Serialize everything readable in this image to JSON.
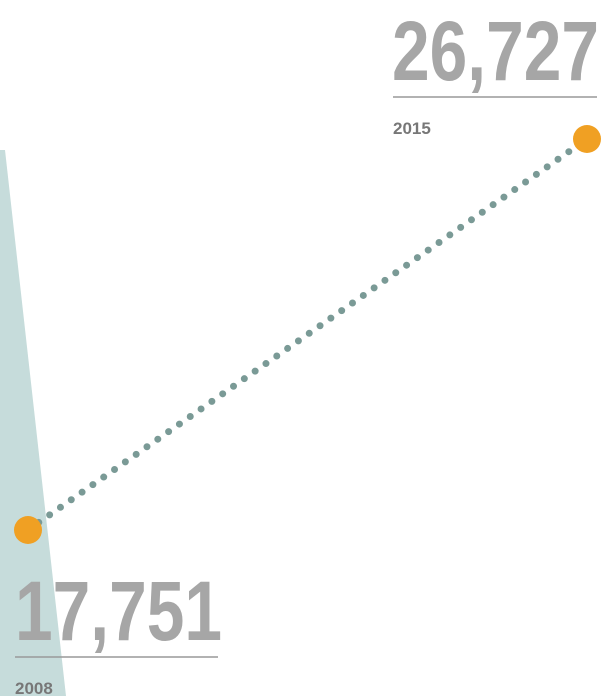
{
  "chart_data": {
    "type": "line",
    "categories": [
      "2008",
      "2015"
    ],
    "values": [
      17751,
      26727
    ],
    "value_labels": [
      "17,751",
      "26,727"
    ],
    "color": "#f0a023",
    "line_color": "#7a9a96"
  }
}
